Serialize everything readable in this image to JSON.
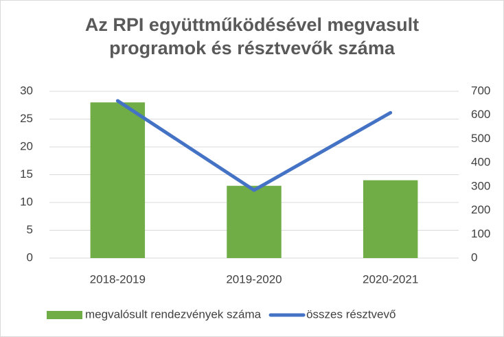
{
  "chart_data": {
    "type": "bar",
    "title": [
      "Az RPI együttműködésével megvasult",
      "programok és résztvevők száma"
    ],
    "categories": [
      "2018-2019",
      "2019-2020",
      "2020-2021"
    ],
    "series": [
      {
        "name": "megvalósult rendezvények száma",
        "color": "#70ad47",
        "type": "bar",
        "values": [
          28,
          13,
          14
        ]
      },
      {
        "name": "összes résztvevő",
        "color": "#4472c4",
        "type": "line",
        "axis": "y2",
        "values": [
          660,
          285,
          610
        ]
      }
    ],
    "ylim": [
      0,
      30
    ],
    "yticks": [
      0,
      5,
      10,
      15,
      20,
      25,
      30
    ],
    "y2lim": [
      0,
      700
    ],
    "y2ticks": [
      0,
      100,
      200,
      300,
      400,
      500,
      600,
      700
    ],
    "grid": true,
    "legend": "bottom"
  }
}
